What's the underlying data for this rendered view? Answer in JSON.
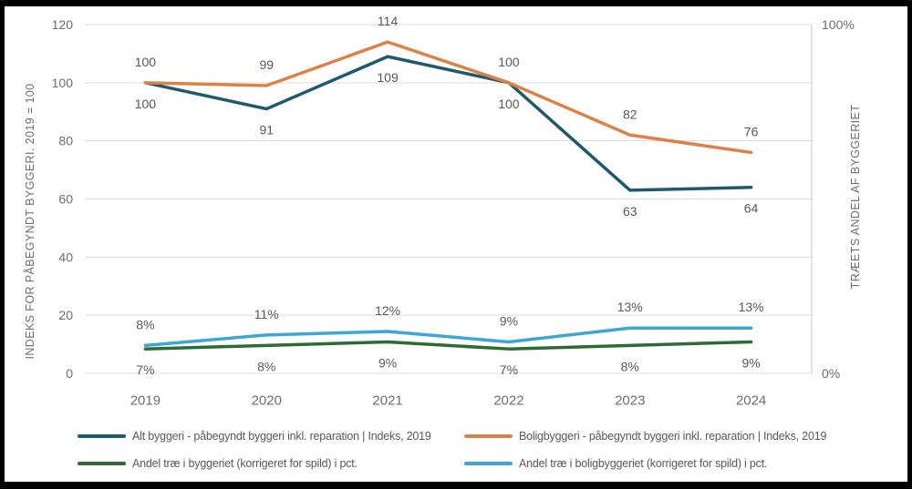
{
  "chart_data": {
    "type": "line",
    "categories": [
      "2019",
      "2020",
      "2021",
      "2022",
      "2023",
      "2024"
    ],
    "left_axis": {
      "title": "INDEKS FOR PÅBEGYNDT BYGGERI. 2019 = 100",
      "range": [
        0,
        120
      ],
      "ticks": [
        0,
        20,
        40,
        60,
        80,
        100,
        120
      ]
    },
    "right_axis": {
      "title": "TRÆETS ANDEL AF BYGGERIET",
      "range": [
        0,
        100
      ],
      "ticks": [
        {
          "value": 100,
          "label": "100%"
        },
        {
          "value": 0,
          "label": "0%"
        }
      ]
    },
    "grid": true,
    "legend_position": "bottom",
    "series": [
      {
        "name": "Alt byggeri - påbegyndt byggeri inkl. reparation | Indeks, 2019",
        "axis": "left",
        "color": "#1F5A6C",
        "values": [
          100,
          91,
          109,
          100,
          63,
          64
        ],
        "labels": [
          "100",
          "91",
          "109",
          "100",
          "63",
          "64"
        ],
        "label_side": "below"
      },
      {
        "name": "Boligbyggeri - påbegyndt byggeri inkl. reparation | Indeks, 2019",
        "axis": "left",
        "color": "#DC8247",
        "values": [
          100,
          99,
          114,
          100,
          82,
          76
        ],
        "labels": [
          "100",
          "99",
          "114",
          "100",
          "82",
          "76"
        ],
        "label_side": "above"
      },
      {
        "name": "Andel træ i byggeriet (korrigeret for spild) i pct.",
        "axis": "right",
        "color": "#2E6B34",
        "values": [
          7,
          8,
          9,
          7,
          8,
          9
        ],
        "labels": [
          "7%",
          "8%",
          "9%",
          "7%",
          "8%",
          "9%"
        ],
        "label_side": "below"
      },
      {
        "name": "Andel træ i boligbyggeriet (korrigeret for spild) i pct.",
        "axis": "right",
        "color": "#3AA7D5",
        "values": [
          8,
          11,
          12,
          9,
          13,
          13
        ],
        "labels": [
          "8%",
          "11%",
          "12%",
          "9%",
          "13%",
          "13%"
        ],
        "label_side": "above"
      }
    ]
  },
  "style": {
    "grid_color": "#DCDCDC",
    "axis_line_color": "#C9C9C9",
    "tick_text_color": "#6E6E6E",
    "data_label_color": "#595959",
    "legend_text_color": "#595959",
    "frame_color": "#000000",
    "background_color": "#FFFFFF"
  }
}
